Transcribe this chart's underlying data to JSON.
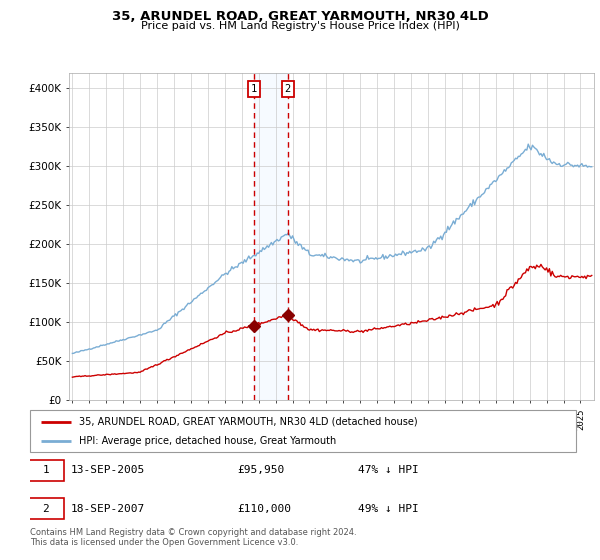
{
  "title": "35, ARUNDEL ROAD, GREAT YARMOUTH, NR30 4LD",
  "subtitle": "Price paid vs. HM Land Registry's House Price Index (HPI)",
  "legend_line1": "35, ARUNDEL ROAD, GREAT YARMOUTH, NR30 4LD (detached house)",
  "legend_line2": "HPI: Average price, detached house, Great Yarmouth",
  "annotation1_date": "13-SEP-2005",
  "annotation1_price": "£95,950",
  "annotation1_hpi": "47% ↓ HPI",
  "annotation2_date": "18-SEP-2007",
  "annotation2_price": "£110,000",
  "annotation2_hpi": "49% ↓ HPI",
  "footnote": "Contains HM Land Registry data © Crown copyright and database right 2024.\nThis data is licensed under the Open Government Licence v3.0.",
  "sale1_year": 2005.71,
  "sale1_price": 95950,
  "sale2_year": 2007.71,
  "sale2_price": 110000,
  "red_line_color": "#cc0000",
  "blue_line_color": "#7aadd4",
  "background_color": "#ffffff",
  "grid_color": "#cccccc",
  "shade_color": "#ddeeff",
  "vline_color": "#cc0000",
  "marker_color": "#880000",
  "box_color": "#cc0000",
  "ylim_max": 420000,
  "xlim_start": 1994.8,
  "xlim_end": 2025.8,
  "yticks": [
    0,
    50000,
    100000,
    150000,
    200000,
    250000,
    300000,
    350000,
    400000
  ]
}
